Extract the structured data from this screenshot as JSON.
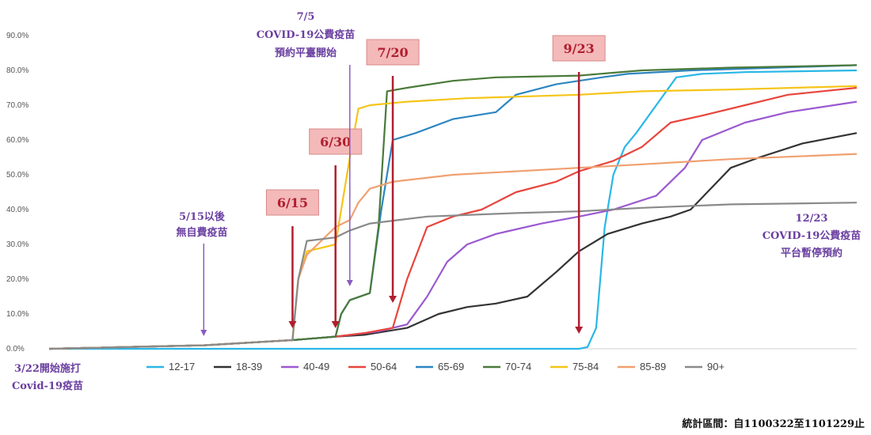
{
  "chart_data": {
    "type": "line",
    "title": "",
    "xlabel": "",
    "ylabel": "",
    "x_start": "2021-03-22",
    "x_end": "2021-12-29",
    "ylim": [
      0,
      90
    ],
    "y_ticks": [
      "0.0%",
      "10.0%",
      "20.0%",
      "30.0%",
      "40.0%",
      "50.0%",
      "60.0%",
      "70.0%",
      "80.0%",
      "90.0%"
    ],
    "grid": false,
    "legend_position": "bottom",
    "series": [
      {
        "name": "12-17",
        "color": "#2ab7e6",
        "points": [
          [
            "2021-03-22",
            0
          ],
          [
            "2021-09-23",
            0
          ],
          [
            "2021-09-26",
            0.5
          ],
          [
            "2021-09-29",
            6
          ],
          [
            "2021-10-02",
            35
          ],
          [
            "2021-10-05",
            50
          ],
          [
            "2021-10-09",
            58
          ],
          [
            "2021-10-13",
            62
          ],
          [
            "2021-10-20",
            70
          ],
          [
            "2021-10-27",
            78
          ],
          [
            "2021-11-05",
            79
          ],
          [
            "2021-11-20",
            79.5
          ],
          [
            "2021-12-29",
            80
          ]
        ]
      },
      {
        "name": "18-39",
        "color": "#333333",
        "points": [
          [
            "2021-03-22",
            0
          ],
          [
            "2021-05-15",
            1
          ],
          [
            "2021-06-15",
            2.5
          ],
          [
            "2021-06-30",
            3.5
          ],
          [
            "2021-07-10",
            4
          ],
          [
            "2021-07-25",
            6
          ],
          [
            "2021-08-05",
            10
          ],
          [
            "2021-08-15",
            12
          ],
          [
            "2021-08-25",
            13
          ],
          [
            "2021-09-05",
            15
          ],
          [
            "2021-09-15",
            22
          ],
          [
            "2021-09-23",
            28
          ],
          [
            "2021-10-03",
            33
          ],
          [
            "2021-10-15",
            36
          ],
          [
            "2021-10-25",
            38
          ],
          [
            "2021-11-01",
            40
          ],
          [
            "2021-11-08",
            46
          ],
          [
            "2021-11-15",
            52
          ],
          [
            "2021-11-25",
            55
          ],
          [
            "2021-12-10",
            59
          ],
          [
            "2021-12-29",
            62
          ]
        ]
      },
      {
        "name": "40-49",
        "color": "#9b59d0",
        "points": [
          [
            "2021-03-22",
            0
          ],
          [
            "2021-05-15",
            1
          ],
          [
            "2021-06-15",
            2.5
          ],
          [
            "2021-06-30",
            3.5
          ],
          [
            "2021-07-15",
            5
          ],
          [
            "2021-07-25",
            7
          ],
          [
            "2021-08-01",
            15
          ],
          [
            "2021-08-08",
            25
          ],
          [
            "2021-08-15",
            30
          ],
          [
            "2021-08-25",
            33
          ],
          [
            "2021-09-10",
            36
          ],
          [
            "2021-09-23",
            38
          ],
          [
            "2021-10-05",
            40
          ],
          [
            "2021-10-20",
            44
          ],
          [
            "2021-10-30",
            52
          ],
          [
            "2021-11-05",
            60
          ],
          [
            "2021-11-20",
            65
          ],
          [
            "2021-12-05",
            68
          ],
          [
            "2021-12-29",
            71
          ]
        ]
      },
      {
        "name": "50-64",
        "color": "#e8453c",
        "points": [
          [
            "2021-03-22",
            0
          ],
          [
            "2021-05-15",
            1
          ],
          [
            "2021-06-15",
            2.5
          ],
          [
            "2021-06-30",
            3.5
          ],
          [
            "2021-07-10",
            4.5
          ],
          [
            "2021-07-20",
            6
          ],
          [
            "2021-07-25",
            20
          ],
          [
            "2021-08-01",
            35
          ],
          [
            "2021-08-10",
            38
          ],
          [
            "2021-08-20",
            40
          ],
          [
            "2021-09-01",
            45
          ],
          [
            "2021-09-15",
            48
          ],
          [
            "2021-09-23",
            51
          ],
          [
            "2021-10-05",
            54
          ],
          [
            "2021-10-15",
            58
          ],
          [
            "2021-10-25",
            65
          ],
          [
            "2021-11-05",
            67
          ],
          [
            "2021-11-20",
            70
          ],
          [
            "2021-12-05",
            73
          ],
          [
            "2021-12-29",
            75
          ]
        ]
      },
      {
        "name": "65-69",
        "color": "#2e86c1",
        "points": [
          [
            "2021-03-22",
            0
          ],
          [
            "2021-05-15",
            1
          ],
          [
            "2021-06-15",
            2.5
          ],
          [
            "2021-06-30",
            3.5
          ],
          [
            "2021-07-02",
            10
          ],
          [
            "2021-07-05",
            14
          ],
          [
            "2021-07-12",
            16
          ],
          [
            "2021-07-16",
            40
          ],
          [
            "2021-07-20",
            60
          ],
          [
            "2021-07-28",
            62
          ],
          [
            "2021-08-10",
            66
          ],
          [
            "2021-08-25",
            68
          ],
          [
            "2021-09-01",
            73
          ],
          [
            "2021-09-15",
            76
          ],
          [
            "2021-09-23",
            77
          ],
          [
            "2021-10-01",
            78
          ],
          [
            "2021-10-10",
            79
          ],
          [
            "2021-11-01",
            80
          ],
          [
            "2021-12-29",
            81.5
          ]
        ]
      },
      {
        "name": "70-74",
        "color": "#4a7a3a",
        "points": [
          [
            "2021-03-22",
            0
          ],
          [
            "2021-05-15",
            1
          ],
          [
            "2021-06-15",
            2.5
          ],
          [
            "2021-06-30",
            3.5
          ],
          [
            "2021-07-02",
            10
          ],
          [
            "2021-07-05",
            14
          ],
          [
            "2021-07-12",
            16
          ],
          [
            "2021-07-15",
            35
          ],
          [
            "2021-07-18",
            74
          ],
          [
            "2021-07-25",
            75
          ],
          [
            "2021-08-10",
            77
          ],
          [
            "2021-08-25",
            78
          ],
          [
            "2021-09-23",
            78.5
          ],
          [
            "2021-10-15",
            80
          ],
          [
            "2021-11-15",
            80.8
          ],
          [
            "2021-12-29",
            81.5
          ]
        ]
      },
      {
        "name": "75-84",
        "color": "#f5c518",
        "points": [
          [
            "2021-03-22",
            0
          ],
          [
            "2021-05-15",
            1
          ],
          [
            "2021-06-15",
            2.5
          ],
          [
            "2021-06-17",
            20
          ],
          [
            "2021-06-20",
            28
          ],
          [
            "2021-06-30",
            30
          ],
          [
            "2021-07-05",
            55
          ],
          [
            "2021-07-08",
            69
          ],
          [
            "2021-07-12",
            70
          ],
          [
            "2021-07-25",
            71
          ],
          [
            "2021-08-15",
            72
          ],
          [
            "2021-09-23",
            73
          ],
          [
            "2021-10-15",
            74
          ],
          [
            "2021-11-15",
            74.5
          ],
          [
            "2021-12-29",
            75.5
          ]
        ]
      },
      {
        "name": "85-89",
        "color": "#f0a070",
        "points": [
          [
            "2021-03-22",
            0
          ],
          [
            "2021-05-15",
            1
          ],
          [
            "2021-06-15",
            2.5
          ],
          [
            "2021-06-17",
            20
          ],
          [
            "2021-06-20",
            27
          ],
          [
            "2021-06-30",
            35
          ],
          [
            "2021-07-05",
            37
          ],
          [
            "2021-07-08",
            42
          ],
          [
            "2021-07-12",
            46
          ],
          [
            "2021-07-20",
            48
          ],
          [
            "2021-08-10",
            50
          ],
          [
            "2021-09-23",
            52
          ],
          [
            "2021-10-15",
            53
          ],
          [
            "2021-11-15",
            54.5
          ],
          [
            "2021-12-29",
            56
          ]
        ]
      },
      {
        "name": "90+",
        "color": "#8a8a8a",
        "points": [
          [
            "2021-03-22",
            0
          ],
          [
            "2021-05-15",
            1
          ],
          [
            "2021-06-15",
            2.5
          ],
          [
            "2021-06-17",
            20
          ],
          [
            "2021-06-20",
            31
          ],
          [
            "2021-06-30",
            32
          ],
          [
            "2021-07-05",
            34
          ],
          [
            "2021-07-12",
            36
          ],
          [
            "2021-08-01",
            38
          ],
          [
            "2021-09-01",
            39
          ],
          [
            "2021-09-23",
            39.5
          ],
          [
            "2021-10-15",
            40.5
          ],
          [
            "2021-11-15",
            41.5
          ],
          [
            "2021-12-29",
            42
          ]
        ]
      }
    ],
    "flag_annotations": [
      {
        "label": "6/15",
        "date": "2021-06-15"
      },
      {
        "label": "6/30",
        "date": "2021-06-30"
      },
      {
        "label": "7/20",
        "date": "2021-07-20"
      },
      {
        "label": "9/23",
        "date": "2021-09-23"
      }
    ]
  },
  "annotations": {
    "start_line1": "3/22開始施打",
    "start_line2": "Covid-19疫苗",
    "may15_line1": "5/15以後",
    "may15_line2": "無自費疫苗",
    "jul5_line1": "7/5",
    "jul5_line2": "COVID-19公費疫苗",
    "jul5_line3": "預約平臺開始",
    "dec23_line1": "12/23",
    "dec23_line2": "COVID-19公費疫苗",
    "dec23_line3": "平台暫停預約"
  },
  "footer": {
    "text": "統計區間：自1100322至1101229止"
  },
  "colors": {
    "flag_fill": "#f4b9b9",
    "flag_border": "#d98a8a",
    "flag_text": "#b01e2f",
    "arrow_red": "#b01e2f",
    "arrow_purple": "#8a5cc0"
  }
}
